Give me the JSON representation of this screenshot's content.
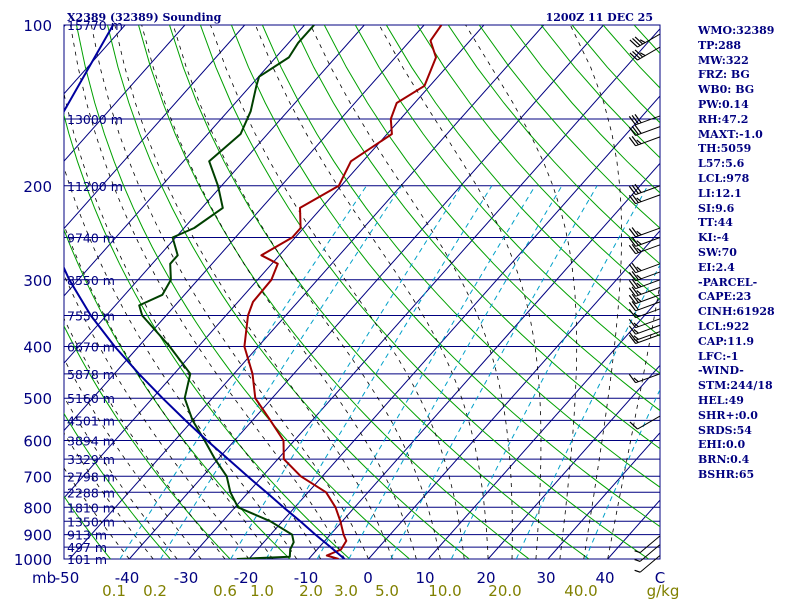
{
  "header": {
    "left": "X2389 (32389) Sounding",
    "right": "1200Z 11 DEC 25"
  },
  "stats": [
    "WMO:32389",
    "TP:288",
    "MW:322",
    "FRZ: BG",
    "WB0: BG",
    "PW:0.14",
    "RH:47.2",
    "MAXT:-1.0",
    "TH:5059",
    "L57:5.6",
    "LCL:978",
    "LI:12.1",
    "SI:9.6",
    "TT:44",
    "KI:-4",
    "SW:70",
    "EI:2.4",
    "-PARCEL-",
    "CAPE:23",
    "CINH:61928",
    "LCL:922",
    "CAP:11.9",
    "LFC:-1",
    "-WIND-",
    "STM:244/18",
    "HEL:49",
    "SHR+:0.0",
    "SRDS:54",
    "EHI:0.0",
    "BRN:0.4",
    "BSHR:65"
  ],
  "colors": {
    "axis": "#000080",
    "isobar": "#000080",
    "isotherm": "#000080",
    "dry_adiabat": "#00a000",
    "moist_adiabat": "#000000",
    "mixing_ratio": "#00a0c8",
    "temperature": "#a00000",
    "dewpoint": "#004000",
    "parcel": "#0000a0",
    "mixing_label": "#808000"
  },
  "chart_data": {
    "type": "skew-t",
    "x_axis_unit_label": "mb",
    "y_axis": "pressure (mb), log scale",
    "ylim": [
      1000,
      100
    ],
    "xlim": [
      -50,
      50
    ],
    "pressure_labels": [
      100,
      200,
      300,
      400,
      500,
      600,
      700,
      800,
      900,
      1000
    ],
    "height_labels": [
      {
        "p": 100,
        "text": "15770 m"
      },
      {
        "p": 150,
        "text": "13000 m"
      },
      {
        "p": 200,
        "text": "11200 m"
      },
      {
        "p": 250,
        "text": "9740 m"
      },
      {
        "p": 300,
        "text": "8550 m"
      },
      {
        "p": 350,
        "text": "7550 m"
      },
      {
        "p": 400,
        "text": "6670 m"
      },
      {
        "p": 450,
        "text": "5878 m"
      },
      {
        "p": 500,
        "text": "5160 m"
      },
      {
        "p": 550,
        "text": "4501 m"
      },
      {
        "p": 600,
        "text": "3894 m"
      },
      {
        "p": 650,
        "text": "3329 m"
      },
      {
        "p": 700,
        "text": "2798 m"
      },
      {
        "p": 750,
        "text": "2288 m"
      },
      {
        "p": 800,
        "text": "1810 m"
      },
      {
        "p": 850,
        "text": "1350 m"
      },
      {
        "p": 900,
        "text": "913 m"
      },
      {
        "p": 950,
        "text": "497 m"
      },
      {
        "p": 1000,
        "text": "101 m"
      }
    ],
    "temperature_ticks": [
      "-50",
      "-40",
      "-30",
      "-20",
      "-10",
      "0",
      "10",
      "20",
      "30",
      "40",
      "C"
    ],
    "mixing_ratio_ticks": [
      "0.1",
      "0.2",
      "0.6",
      "1.0",
      "2.0",
      "3.0",
      "5.0",
      "10.0",
      "20.0",
      "40.0",
      "g/kg"
    ],
    "series": [
      {
        "key": "temperature",
        "points": [
          [
            1000,
            -5
          ],
          [
            985,
            -7.5
          ],
          [
            960,
            -6
          ],
          [
            925,
            -6.4
          ],
          [
            900,
            -7.8
          ],
          [
            850,
            -10.3
          ],
          [
            800,
            -13.2
          ],
          [
            750,
            -17
          ],
          [
            700,
            -23.6
          ],
          [
            650,
            -29
          ],
          [
            600,
            -31.8
          ],
          [
            550,
            -37
          ],
          [
            500,
            -42.8
          ],
          [
            450,
            -46.9
          ],
          [
            400,
            -52.3
          ],
          [
            350,
            -56.3
          ],
          [
            330,
            -57.5
          ],
          [
            300,
            -57.7
          ],
          [
            280,
            -59
          ],
          [
            270,
            -63
          ],
          [
            250,
            -60.5
          ],
          [
            240,
            -60.5
          ],
          [
            220,
            -63.6
          ],
          [
            200,
            -60.4
          ],
          [
            180,
            -62
          ],
          [
            160,
            -59.2
          ],
          [
            150,
            -61.6
          ],
          [
            140,
            -63
          ],
          [
            130,
            -60.9
          ],
          [
            115,
            -63.2
          ],
          [
            107,
            -66.6
          ],
          [
            100,
            -67.1
          ]
        ]
      },
      {
        "key": "dewpoint",
        "points": [
          [
            1000,
            -22
          ],
          [
            990,
            -13.5
          ],
          [
            960,
            -14.5
          ],
          [
            930,
            -15
          ],
          [
            900,
            -16.4
          ],
          [
            850,
            -22
          ],
          [
            800,
            -29.5
          ],
          [
            750,
            -33
          ],
          [
            700,
            -36
          ],
          [
            650,
            -40.5
          ],
          [
            600,
            -45
          ],
          [
            550,
            -50
          ],
          [
            500,
            -54.6
          ],
          [
            450,
            -57.3
          ],
          [
            400,
            -64.8
          ],
          [
            350,
            -74
          ],
          [
            335,
            -76
          ],
          [
            320,
            -73.7
          ],
          [
            300,
            -74.5
          ],
          [
            280,
            -77
          ],
          [
            270,
            -77
          ],
          [
            250,
            -80.5
          ],
          [
            240,
            -78.3
          ],
          [
            220,
            -76.5
          ],
          [
            200,
            -80.6
          ],
          [
            180,
            -85.7
          ],
          [
            160,
            -84.5
          ],
          [
            145,
            -86.2
          ],
          [
            130,
            -89
          ],
          [
            125,
            -89.9
          ],
          [
            115,
            -87.8
          ],
          [
            108,
            -88.4
          ],
          [
            100,
            -88.4
          ]
        ]
      },
      {
        "key": "parcel",
        "points": [
          [
            1000,
            -4
          ],
          [
            950,
            -8.1
          ],
          [
            900,
            -12.5
          ],
          [
            850,
            -17
          ],
          [
            800,
            -21.9
          ],
          [
            750,
            -27
          ],
          [
            700,
            -32.5
          ],
          [
            650,
            -38.3
          ],
          [
            600,
            -44.6
          ],
          [
            550,
            -51.2
          ],
          [
            500,
            -58.3
          ],
          [
            450,
            -65.9
          ],
          [
            400,
            -74
          ],
          [
            350,
            -82.6
          ],
          [
            300,
            -91.5
          ],
          [
            250,
            -101
          ],
          [
            200,
            -110
          ],
          [
            150,
            -117
          ],
          [
            100,
            -122
          ]
        ]
      }
    ],
    "wind_barbs": [
      {
        "p": 104,
        "dir": 240,
        "spd": 35
      },
      {
        "p": 110,
        "dir": 240,
        "spd": 35
      },
      {
        "p": 148,
        "dir": 250,
        "spd": 30
      },
      {
        "p": 155,
        "dir": 250,
        "spd": 30
      },
      {
        "p": 162,
        "dir": 250,
        "spd": 25
      },
      {
        "p": 200,
        "dir": 250,
        "spd": 30
      },
      {
        "p": 208,
        "dir": 250,
        "spd": 25
      },
      {
        "p": 240,
        "dir": 250,
        "spd": 25
      },
      {
        "p": 250,
        "dir": 250,
        "spd": 25
      },
      {
        "p": 258,
        "dir": 250,
        "spd": 25
      },
      {
        "p": 280,
        "dir": 250,
        "spd": 25
      },
      {
        "p": 290,
        "dir": 250,
        "spd": 25
      },
      {
        "p": 300,
        "dir": 250,
        "spd": 25
      },
      {
        "p": 310,
        "dir": 250,
        "spd": 25
      },
      {
        "p": 320,
        "dir": 250,
        "spd": 25
      },
      {
        "p": 330,
        "dir": 250,
        "spd": 20
      },
      {
        "p": 340,
        "dir": 250,
        "spd": 15
      },
      {
        "p": 355,
        "dir": 250,
        "spd": 15
      },
      {
        "p": 365,
        "dir": 250,
        "spd": 15
      },
      {
        "p": 375,
        "dir": 250,
        "spd": 15
      },
      {
        "p": 380,
        "dir": 250,
        "spd": 15
      },
      {
        "p": 450,
        "dir": 250,
        "spd": 15
      },
      {
        "p": 540,
        "dir": 240,
        "spd": 10
      },
      {
        "p": 905,
        "dir": 230,
        "spd": 5
      },
      {
        "p": 940,
        "dir": 230,
        "spd": 5
      },
      {
        "p": 985,
        "dir": 230,
        "spd": 5
      }
    ]
  }
}
